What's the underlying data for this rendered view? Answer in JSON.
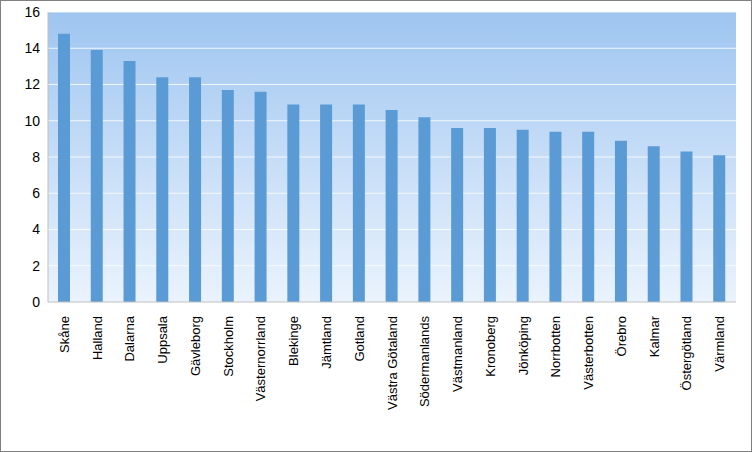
{
  "chart_data": {
    "type": "bar",
    "categories": [
      "Skåne",
      "Halland",
      "Dalarna",
      "Uppsala",
      "Gävleborg",
      "Stockholm",
      "Västernorrland",
      "Blekinge",
      "Jämtland",
      "Gotland",
      "Västra Götaland",
      "Södermanlands",
      "Västmanland",
      "Kronoberg",
      "Jönköping",
      "Norrbotten",
      "Västerbotten",
      "Örebro",
      "Kalmar",
      "Östergötland",
      "Värmland"
    ],
    "values": [
      14.8,
      13.9,
      13.3,
      12.4,
      12.4,
      11.7,
      11.6,
      10.9,
      10.9,
      10.9,
      10.6,
      10.2,
      9.6,
      9.6,
      9.5,
      9.4,
      9.4,
      8.9,
      8.6,
      8.3,
      8.1
    ],
    "color": "#5b9bd5",
    "ylim": [
      0,
      16
    ],
    "yticks": [
      0,
      2,
      4,
      6,
      8,
      10,
      12,
      14,
      16
    ],
    "grid": true
  }
}
